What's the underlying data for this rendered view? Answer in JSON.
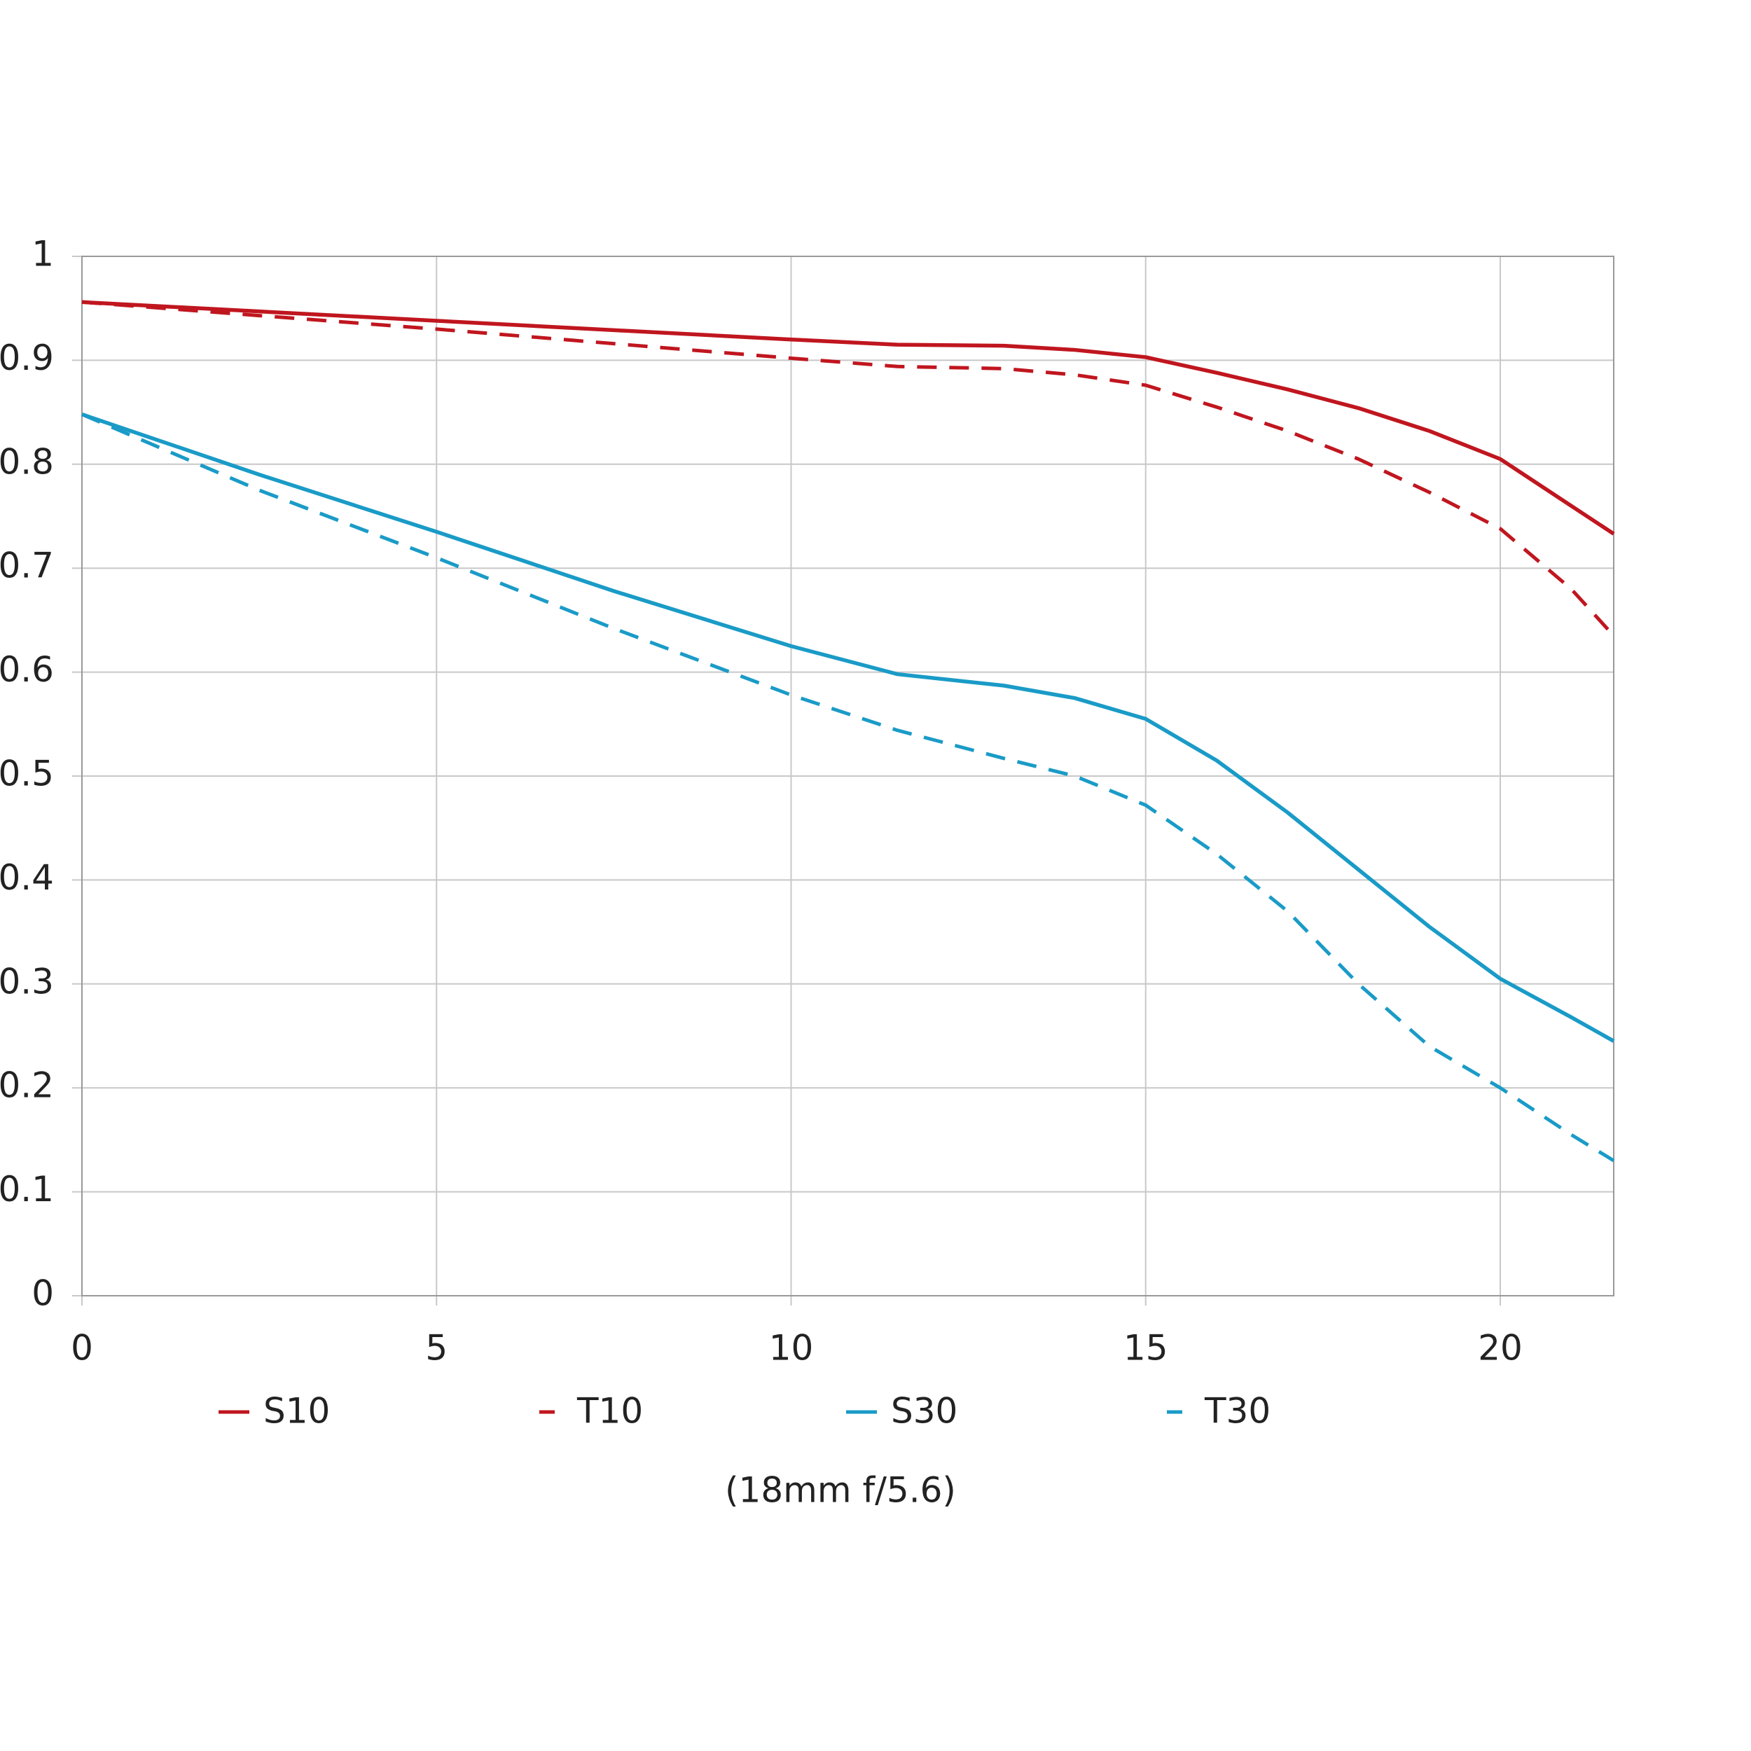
{
  "chart_data": {
    "type": "line",
    "subtitle": "(18mm f/5.6)",
    "x": [
      0,
      2.5,
      5,
      7.5,
      10,
      11.5,
      13,
      14,
      15,
      16,
      17,
      18,
      19,
      20,
      21,
      21.6
    ],
    "series": [
      {
        "name": "S10",
        "color": "#c0161f",
        "dashed": false,
        "values": [
          0.956,
          0.947,
          0.938,
          0.929,
          0.92,
          0.915,
          0.914,
          0.91,
          0.903,
          0.888,
          0.872,
          0.854,
          0.832,
          0.805,
          0.76,
          0.733
        ]
      },
      {
        "name": "T10",
        "color": "#c0161f",
        "dashed": true,
        "values": [
          0.956,
          0.943,
          0.93,
          0.916,
          0.902,
          0.894,
          0.892,
          0.886,
          0.876,
          0.855,
          0.832,
          0.805,
          0.773,
          0.738,
          0.68,
          0.635
        ]
      },
      {
        "name": "S30",
        "color": "#1a9bc7",
        "dashed": false,
        "values": [
          0.848,
          0.79,
          0.735,
          0.678,
          0.625,
          0.598,
          0.587,
          0.575,
          0.555,
          0.515,
          0.465,
          0.41,
          0.355,
          0.305,
          0.268,
          0.245
        ]
      },
      {
        "name": "T30",
        "color": "#1a9bc7",
        "dashed": true,
        "values": [
          0.848,
          0.775,
          0.71,
          0.642,
          0.578,
          0.544,
          0.517,
          0.5,
          0.472,
          0.425,
          0.37,
          0.3,
          0.24,
          0.2,
          0.155,
          0.13
        ]
      }
    ],
    "xlim": [
      0,
      21.6
    ],
    "xticks": [
      0,
      5,
      10,
      15,
      20
    ],
    "ylim": [
      0,
      1
    ],
    "yticks": [
      0,
      0.1,
      0.2,
      0.3,
      0.4,
      0.5,
      0.6,
      0.7,
      0.8,
      0.9,
      1
    ],
    "grid": true
  }
}
